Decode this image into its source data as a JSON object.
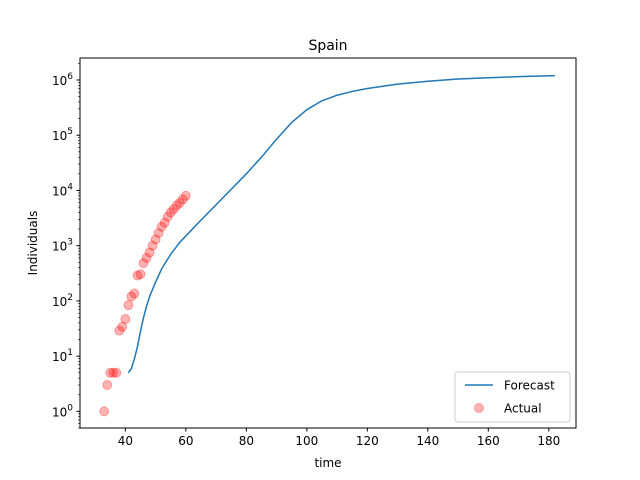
{
  "chart_data": {
    "type": "line",
    "title": "Spain",
    "xlabel": "time",
    "ylabel": "Individuals",
    "x_scale": "linear",
    "y_scale": "log",
    "xlim": [
      25,
      189
    ],
    "ylim": [
      0.5,
      2500000
    ],
    "x_ticks": [
      40,
      60,
      80,
      100,
      120,
      140,
      160,
      180
    ],
    "y_ticks": [
      {
        "value": 1,
        "base": "10",
        "exp": "0"
      },
      {
        "value": 10,
        "base": "10",
        "exp": "1"
      },
      {
        "value": 100,
        "base": "10",
        "exp": "2"
      },
      {
        "value": 1000,
        "base": "10",
        "exp": "3"
      },
      {
        "value": 10000,
        "base": "10",
        "exp": "4"
      },
      {
        "value": 100000,
        "base": "10",
        "exp": "5"
      },
      {
        "value": 1000000,
        "base": "10",
        "exp": "6"
      }
    ],
    "grid": false,
    "legend_position": "lower right",
    "colors": {
      "forecast": "#1f77b4",
      "actual": "#ff0000"
    },
    "series": [
      {
        "name": "Forecast",
        "kind": "line",
        "x": [
          41,
          42,
          43,
          44,
          45,
          46,
          47,
          48,
          50,
          52,
          55,
          58,
          60,
          65,
          70,
          75,
          80,
          85,
          90,
          95,
          100,
          105,
          110,
          115,
          120,
          130,
          140,
          150,
          160,
          170,
          182
        ],
        "y": [
          5,
          6,
          9,
          15,
          28,
          50,
          80,
          120,
          220,
          380,
          700,
          1150,
          1500,
          2900,
          5500,
          10500,
          20000,
          40000,
          85000,
          170000,
          290000,
          420000,
          530000,
          620000,
          700000,
          840000,
          950000,
          1040000,
          1100000,
          1150000,
          1200000
        ]
      },
      {
        "name": "Actual",
        "kind": "scatter",
        "x": [
          33,
          34,
          35,
          36,
          37,
          38,
          39,
          40,
          41,
          42,
          43,
          44,
          45,
          46,
          47,
          48,
          49,
          50,
          51,
          52,
          53,
          54,
          55,
          56,
          57,
          58,
          59,
          60
        ],
        "y": [
          1,
          3,
          5,
          5,
          5,
          29,
          34,
          47,
          84,
          120,
          136,
          288,
          305,
          484,
          600,
          750,
          1000,
          1300,
          1700,
          2200,
          2600,
          3350,
          4000,
          4600,
          5350,
          6000,
          6900,
          8000
        ]
      }
    ]
  }
}
